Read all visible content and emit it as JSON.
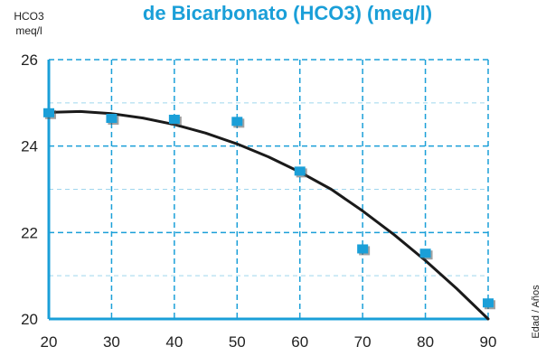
{
  "chart_data": {
    "type": "scatter",
    "title": "de Bicarbonato (HCO3) (meq/l)",
    "ylabel_line1": "HCO3",
    "ylabel_line2": "meq/l",
    "xlabel": "Edad / Años",
    "xlim": [
      20,
      90
    ],
    "ylim": [
      20,
      26
    ],
    "x_ticks": [
      "20",
      "30",
      "40",
      "50",
      "60",
      "70",
      "80",
      "90"
    ],
    "y_ticks": [
      "20",
      "22",
      "24",
      "26"
    ],
    "grid": true,
    "series": [
      {
        "type": "scatter",
        "x": [
          20,
          30,
          40,
          50,
          60,
          70,
          80,
          90
        ],
        "y": [
          24.75,
          24.62,
          24.6,
          24.55,
          23.4,
          21.6,
          21.5,
          20.35
        ]
      },
      {
        "type": "line",
        "x": [
          20,
          25,
          30,
          35,
          40,
          45,
          50,
          55,
          60,
          65,
          70,
          75,
          80,
          85,
          90
        ],
        "y": [
          24.78,
          24.8,
          24.75,
          24.65,
          24.5,
          24.3,
          24.05,
          23.75,
          23.4,
          23.0,
          22.5,
          21.95,
          21.35,
          20.7,
          20.0
        ]
      }
    ],
    "colors": {
      "marker": "#1a9fd8",
      "grid": "#1a9fd8",
      "grid_minor": "#9fd6ee",
      "axis": "#1a9fd8",
      "curve": "#1a1a1a",
      "title": "#1a9fd8",
      "text": "#222222"
    }
  }
}
